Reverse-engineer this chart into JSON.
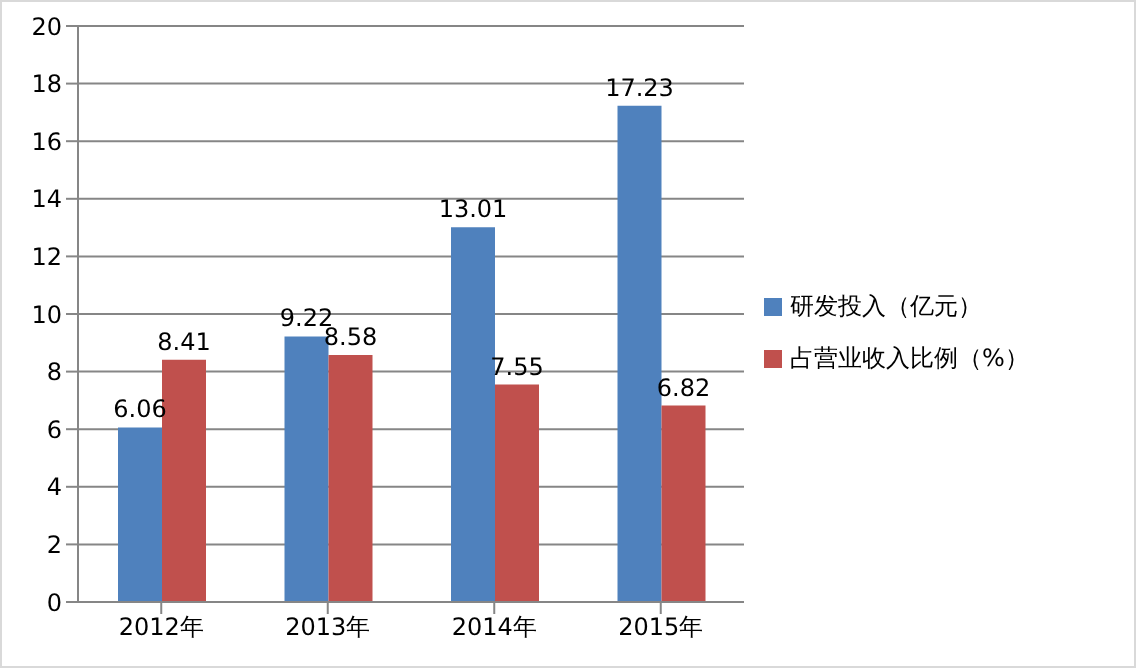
{
  "chart_data": {
    "type": "bar",
    "categories": [
      "2012年",
      "2013年",
      "2014年",
      "2015年"
    ],
    "series": [
      {
        "name": "研发投入（亿元）",
        "color": "#4f81bd",
        "values": [
          6.06,
          9.22,
          13.01,
          17.23
        ]
      },
      {
        "name": "占营业收入比例（%）",
        "color": "#c0504d",
        "values": [
          8.41,
          8.58,
          7.55,
          6.82
        ]
      }
    ],
    "ylim": [
      0,
      20
    ],
    "yticks": [
      0,
      2,
      4,
      6,
      8,
      10,
      12,
      14,
      16,
      18,
      20
    ],
    "grid": "y",
    "legend": "right",
    "data_labels": true
  }
}
